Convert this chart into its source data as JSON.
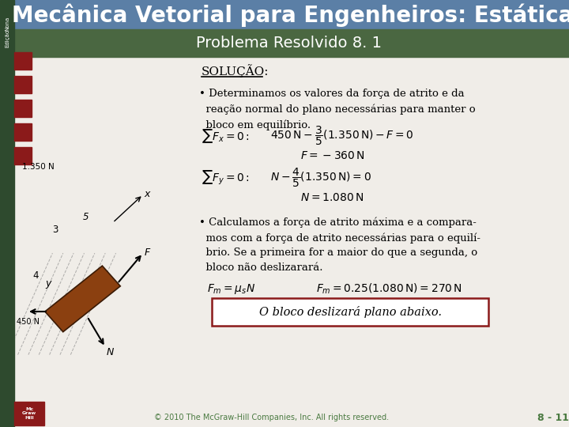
{
  "title": "Mecânica Vetorial para Engenheiros: Estática",
  "subtitle": "Problema Resolvido 8. 1",
  "header_bg": "#4a6741",
  "title_bg": "#5b7fa6",
  "title_color": "#ffffff",
  "subtitle_color": "#ffffff",
  "body_bg": "#f0ede8",
  "sidebar_bg": "#2e4a2e",
  "footer_text": "© 2010 The McGraw-Hill Companies, Inc. All rights reserved.",
  "footer_page": "8 - 11",
  "footer_color": "#4a7a41",
  "box_border_color": "#8b1a1a",
  "box_bg": "#ffffff",
  "nav_color": "#8b1a1a",
  "logo_color": "#8b1a1a"
}
